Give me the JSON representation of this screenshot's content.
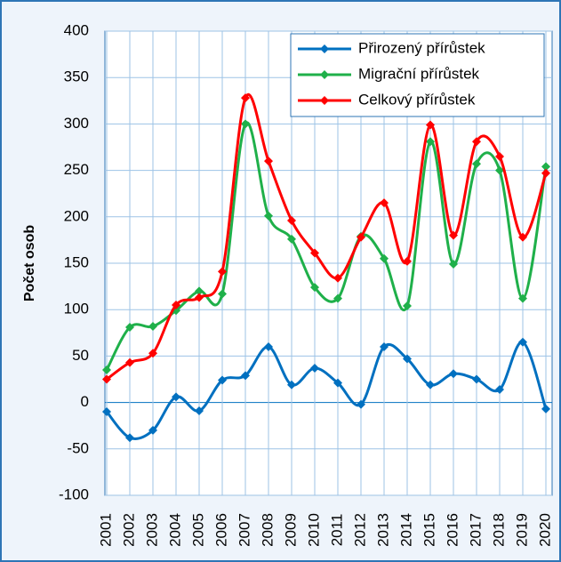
{
  "chart_data": {
    "type": "line",
    "smooth": true,
    "y_label": "Počet osob",
    "categories": [
      "2001",
      "2002",
      "2003",
      "2004",
      "2005",
      "2006",
      "2007",
      "2008",
      "2009",
      "2010",
      "2011",
      "2012",
      "2013",
      "2014",
      "2015",
      "2016",
      "2017",
      "2018",
      "2019",
      "2020"
    ],
    "series": [
      {
        "name": "Přirozený přírůstek",
        "color": "#0070c0",
        "values": [
          -10,
          -38,
          -30,
          6,
          -9,
          24,
          29,
          60,
          19,
          37,
          21,
          -2,
          60,
          47,
          19,
          31,
          25,
          14,
          65,
          -7
        ]
      },
      {
        "name": "Migrační přírůstek",
        "color": "#1fb04a",
        "values": [
          35,
          81,
          82,
          99,
          120,
          117,
          300,
          201,
          176,
          124,
          112,
          179,
          155,
          104,
          281,
          149,
          257,
          250,
          112,
          254
        ]
      },
      {
        "name": "Celkový přírůstek",
        "color": "#ff0000",
        "values": [
          25,
          43,
          53,
          105,
          113,
          141,
          328,
          260,
          196,
          161,
          134,
          178,
          215,
          152,
          299,
          180,
          281,
          265,
          178,
          247
        ]
      }
    ],
    "ylim": [
      -100,
      400
    ],
    "yticks": [
      -100,
      -50,
      0,
      50,
      100,
      150,
      200,
      250,
      300,
      350,
      400
    ],
    "grid": true,
    "legend": "top-right"
  }
}
